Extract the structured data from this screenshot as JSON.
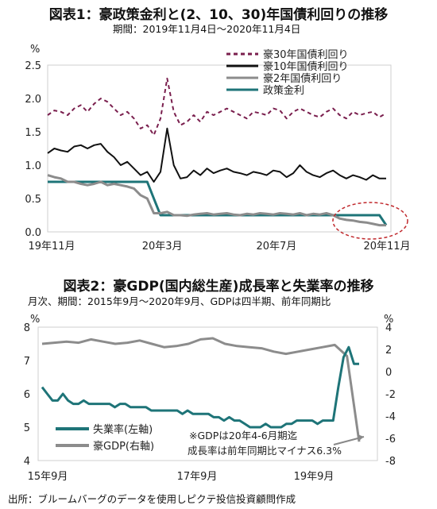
{
  "chart_data": [
    {
      "type": "line",
      "title": "図表1：豪政策金利と(2、10、30)年国債利回りの推移",
      "subtitle": "期間：2019年11月4日～2020年11月4日",
      "yunit": "%",
      "ylim": [
        0,
        2.5
      ],
      "yticks": [
        "0.0",
        "0.5",
        "1.0",
        "1.5",
        "2.0",
        "2.5"
      ],
      "xtick_labels": [
        "19年11月",
        "20年3月",
        "20年7月",
        "20年11月"
      ],
      "legend_position": "top-right",
      "series": [
        {
          "name": "豪30年国債利回り",
          "color": "#7a1f4e",
          "dash": true,
          "values": [
            1.75,
            1.82,
            1.8,
            1.75,
            1.85,
            1.9,
            1.8,
            1.92,
            2.0,
            1.95,
            1.85,
            1.75,
            1.8,
            1.7,
            1.55,
            1.6,
            1.45,
            1.7,
            2.3,
            1.8,
            1.6,
            1.65,
            1.75,
            1.65,
            1.8,
            1.75,
            1.8,
            1.85,
            1.8,
            1.75,
            1.7,
            1.8,
            1.78,
            1.75,
            1.85,
            1.82,
            1.7,
            1.8,
            1.85,
            1.8,
            1.75,
            1.72,
            1.8,
            1.85,
            1.75,
            1.7,
            1.8,
            1.75,
            1.78,
            1.8,
            1.72,
            1.78
          ]
        },
        {
          "name": "豪10年国債利回り",
          "color": "#111111",
          "dash": false,
          "values": [
            1.18,
            1.25,
            1.22,
            1.2,
            1.28,
            1.3,
            1.25,
            1.3,
            1.32,
            1.2,
            1.12,
            1.0,
            1.05,
            0.95,
            0.85,
            0.9,
            0.75,
            0.9,
            1.55,
            1.0,
            0.8,
            0.82,
            0.92,
            0.85,
            0.95,
            0.88,
            0.92,
            0.95,
            0.9,
            0.88,
            0.85,
            0.9,
            0.88,
            0.85,
            0.92,
            0.9,
            0.82,
            0.88,
            1.0,
            0.9,
            0.85,
            0.82,
            0.88,
            0.92,
            0.85,
            0.8,
            0.85,
            0.82,
            0.78,
            0.85,
            0.8,
            0.8
          ]
        },
        {
          "name": "豪2年国債利回り",
          "color": "#8c8c8c",
          "dash": false,
          "values": [
            0.85,
            0.82,
            0.8,
            0.75,
            0.75,
            0.72,
            0.7,
            0.72,
            0.75,
            0.7,
            0.72,
            0.7,
            0.68,
            0.65,
            0.55,
            0.5,
            0.28,
            0.28,
            0.3,
            0.25,
            0.25,
            0.24,
            0.26,
            0.27,
            0.28,
            0.26,
            0.27,
            0.28,
            0.26,
            0.25,
            0.27,
            0.26,
            0.28,
            0.27,
            0.26,
            0.28,
            0.27,
            0.26,
            0.28,
            0.25,
            0.27,
            0.26,
            0.28,
            0.25,
            0.2,
            0.18,
            0.17,
            0.15,
            0.14,
            0.12,
            0.1,
            0.1
          ]
        },
        {
          "name": "政策金利",
          "color": "#1e7478",
          "dash": false,
          "values": [
            0.75,
            0.75,
            0.75,
            0.75,
            0.75,
            0.75,
            0.75,
            0.75,
            0.75,
            0.75,
            0.75,
            0.75,
            0.75,
            0.75,
            0.75,
            0.75,
            0.5,
            0.25,
            0.25,
            0.25,
            0.25,
            0.25,
            0.25,
            0.25,
            0.25,
            0.25,
            0.25,
            0.25,
            0.25,
            0.25,
            0.25,
            0.25,
            0.25,
            0.25,
            0.25,
            0.25,
            0.25,
            0.25,
            0.25,
            0.25,
            0.25,
            0.25,
            0.25,
            0.25,
            0.25,
            0.25,
            0.25,
            0.25,
            0.25,
            0.25,
            0.25,
            0.1
          ]
        }
      ]
    },
    {
      "type": "line",
      "title": "図表2：豪GDP(国内総生産)成長率と失業率の推移",
      "subtitle": "月次、期間：2015年9月～2020年9月、GDPは四半期、前年同期比",
      "yunit_left": "%",
      "yunit_right": "%",
      "ylim_left": [
        4,
        8
      ],
      "ylim_right": [
        -8,
        4
      ],
      "yticks_left": [
        "4",
        "5",
        "6",
        "7",
        "8"
      ],
      "yticks_right": [
        "-8",
        "-6",
        "-4",
        "-2",
        "0",
        "2",
        "4"
      ],
      "xtick_labels": [
        "15年9月",
        "17年9月",
        "19年9月"
      ],
      "legend_position": "bottom-left",
      "note": "※GDPは20年4-6月期迄成長率は前年同期比マイナス6.3%",
      "note_lines": [
        "※GDPは20年4-6月期迄",
        "成長率は前年同期比マイナス6.3%"
      ],
      "series": [
        {
          "name": "失業率(左軸)",
          "axis": "left",
          "color": "#1e7478",
          "values": [
            6.2,
            6.0,
            5.8,
            5.8,
            6.0,
            5.8,
            5.7,
            5.7,
            5.8,
            5.7,
            5.7,
            5.7,
            5.7,
            5.7,
            5.6,
            5.7,
            5.7,
            5.6,
            5.6,
            5.6,
            5.6,
            5.5,
            5.5,
            5.5,
            5.5,
            5.5,
            5.5,
            5.4,
            5.5,
            5.4,
            5.4,
            5.4,
            5.4,
            5.3,
            5.3,
            5.2,
            5.3,
            5.2,
            5.2,
            5.1,
            5.0,
            5.0,
            5.0,
            5.1,
            5.0,
            5.0,
            5.0,
            5.1,
            5.1,
            5.2,
            5.2,
            5.2,
            5.2,
            5.1,
            5.2,
            5.2,
            5.2,
            6.2,
            7.1,
            7.4,
            6.9,
            6.9
          ]
        },
        {
          "name": "豪GDP(右軸)",
          "axis": "right",
          "color": "#8c8c8c",
          "values": [
            2.5,
            2.6,
            2.7,
            2.6,
            2.9,
            2.7,
            2.5,
            2.6,
            2.8,
            2.5,
            2.2,
            2.3,
            2.5,
            2.9,
            3.0,
            2.5,
            2.3,
            2.2,
            2.1,
            1.8,
            1.6,
            1.8,
            2.0,
            2.2,
            2.4,
            1.4,
            -6.3
          ]
        }
      ]
    }
  ],
  "source": "出所：ブルームバーグのデータを使用しピクテ投信投資顧問作成"
}
